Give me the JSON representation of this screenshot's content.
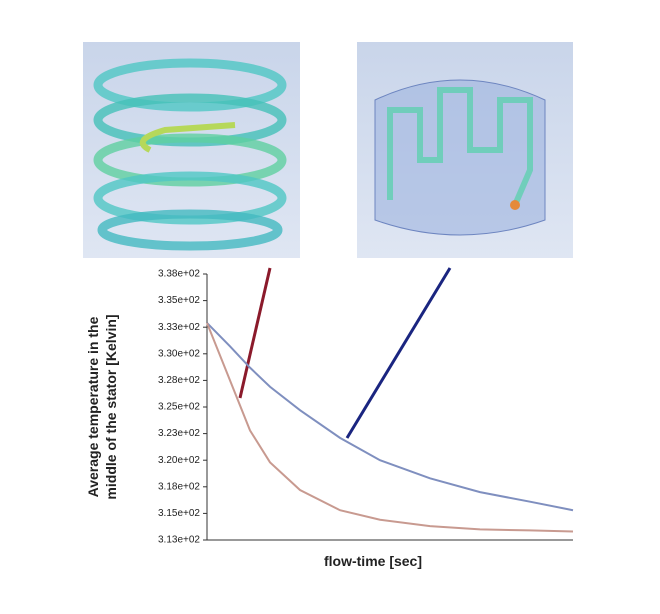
{
  "chart_data": {
    "type": "line",
    "y_label": [
      "Average temperature in the",
      "middle of the stator [Kelvin]"
    ],
    "x_label": "flow-time [sec]",
    "x": [
      0,
      23,
      43,
      63,
      93,
      133,
      173,
      223,
      273,
      323,
      366
    ],
    "xlim": [
      0,
      366
    ],
    "ylim": [
      313,
      338
    ],
    "yticks": [
      {
        "value": 338,
        "label": "3.38e+02"
      },
      {
        "value": 335.5,
        "label": "3.35e+02"
      },
      {
        "value": 333,
        "label": "3.33e+02"
      },
      {
        "value": 330.5,
        "label": "3.30e+02"
      },
      {
        "value": 328,
        "label": "3.28e+02"
      },
      {
        "value": 325.5,
        "label": "3.25e+02"
      },
      {
        "value": 323,
        "label": "3.23e+02"
      },
      {
        "value": 320.5,
        "label": "3.20e+02"
      },
      {
        "value": 318,
        "label": "3.18e+02"
      },
      {
        "value": 315.5,
        "label": "3.15e+02"
      },
      {
        "value": 313,
        "label": "3.13e+02"
      }
    ],
    "series": [
      {
        "color": "#7f8fbf",
        "values": [
          333.4,
          331.2,
          329.2,
          327.4,
          325.2,
          322.6,
          320.5,
          318.8,
          317.5,
          316.6,
          315.8
        ]
      },
      {
        "color": "#c89a90",
        "values": [
          333.4,
          328.0,
          323.3,
          320.3,
          317.7,
          315.8,
          314.9,
          314.3,
          314.0,
          313.9,
          313.8
        ]
      }
    ]
  }
}
